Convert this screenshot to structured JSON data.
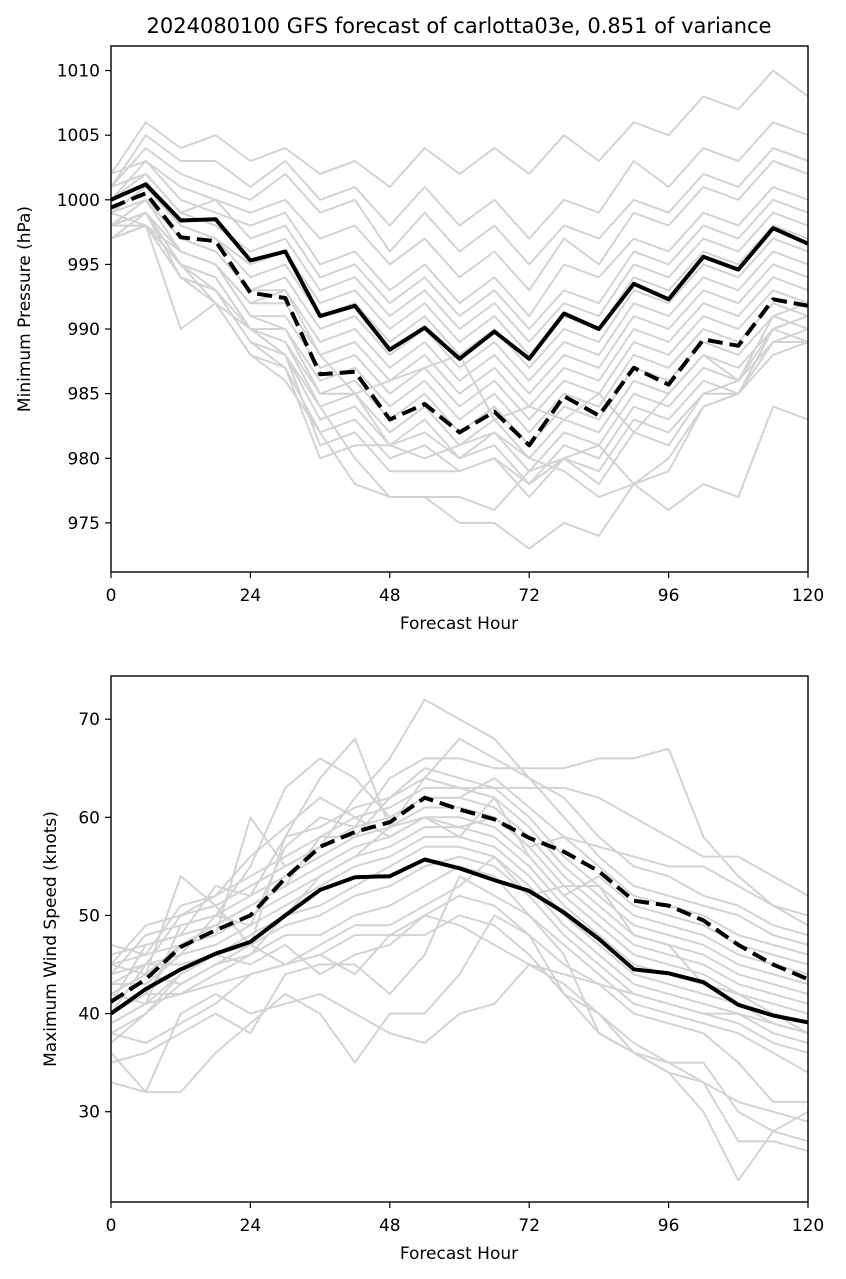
{
  "chart_data": [
    {
      "type": "line",
      "title": "2024080100 GFS forecast of carlotta03e, 0.851 of variance",
      "xlabel": "Forecast Hour",
      "ylabel": "Minimum Pressure (hPa)",
      "xlim": [
        0,
        120
      ],
      "ylim": [
        971.2,
        1011.9
      ],
      "xticks": [
        0,
        24,
        48,
        72,
        96,
        120
      ],
      "yticks": [
        975,
        980,
        985,
        990,
        995,
        1000,
        1005,
        1010
      ],
      "grid": false,
      "x": [
        0,
        6,
        12,
        18,
        24,
        30,
        36,
        42,
        48,
        54,
        60,
        66,
        72,
        78,
        84,
        90,
        96,
        102,
        108,
        114,
        120
      ],
      "series": [
        {
          "style": "solid",
          "color": "#000000",
          "values": [
            1000.0,
            1001.2,
            998.4,
            998.5,
            995.3,
            996.0,
            991.0,
            991.8,
            988.4,
            990.1,
            987.7,
            989.8,
            987.7,
            991.2,
            990.0,
            993.5,
            992.3,
            995.6,
            994.6,
            997.8,
            996.6
          ]
        },
        {
          "style": "dashed",
          "color": "#000000",
          "values": [
            999.4,
            1000.5,
            997.1,
            996.8,
            992.8,
            992.4,
            986.5,
            986.7,
            983.0,
            984.2,
            982.0,
            983.6,
            981.0,
            984.8,
            983.3,
            987.0,
            985.7,
            989.2,
            988.7,
            992.3,
            991.8
          ]
        }
      ],
      "members": [
        [
          1002,
          1006,
          1004,
          1005,
          1003,
          1004,
          1002,
          1003,
          1001,
          1004,
          1002,
          1004,
          1002,
          1005,
          1003,
          1006,
          1005,
          1008,
          1007,
          1010,
          1008
        ],
        [
          1001,
          1005,
          1003,
          1003,
          1001,
          1003,
          1000,
          1001,
          998,
          1001,
          998,
          1000,
          997,
          1000,
          999,
          1003,
          1001,
          1004,
          1003,
          1006,
          1005
        ],
        [
          1001,
          1004,
          1002,
          1001,
          1000,
          1002,
          999,
          1000,
          996,
          999,
          996,
          998,
          995,
          998,
          997,
          1000,
          999,
          1002,
          1001,
          1004,
          1003
        ],
        [
          1002,
          1003,
          1001,
          1000,
          999,
          1000,
          997,
          998,
          995,
          997,
          994,
          996,
          993,
          997,
          995,
          999,
          998,
          1001,
          1000,
          1003,
          1002
        ],
        [
          1000,
          1003,
          1000,
          999,
          998,
          999,
          995,
          996,
          993,
          995,
          992,
          994,
          991,
          995,
          994,
          997,
          996,
          999,
          998,
          1001,
          1000
        ],
        [
          1001,
          1002,
          999,
          1000,
          997,
          998,
          994,
          995,
          992,
          994,
          991,
          993,
          990,
          993,
          992,
          996,
          995,
          998,
          997,
          1000,
          999
        ],
        [
          1000,
          1002,
          999,
          998,
          996,
          997,
          993,
          994,
          991,
          993,
          990,
          992,
          989,
          992,
          991,
          995,
          994,
          997,
          996,
          999,
          998
        ],
        [
          999,
          1001,
          998,
          997,
          995,
          996,
          992,
          993,
          990,
          992,
          989,
          991,
          988,
          991,
          990,
          994,
          993,
          996,
          995,
          998,
          997
        ],
        [
          999,
          1001,
          998,
          997,
          994,
          995,
          991,
          992,
          989,
          991,
          988,
          990,
          987,
          990,
          989,
          993,
          992,
          995,
          994,
          997,
          996
        ],
        [
          998,
          1000,
          997,
          996,
          993,
          994,
          990,
          991,
          988,
          990,
          987,
          989,
          986,
          989,
          988,
          992,
          991,
          994,
          993,
          996,
          995
        ],
        [
          998,
          1000,
          997,
          996,
          993,
          993,
          989,
          990,
          987,
          989,
          986,
          988,
          985,
          988,
          987,
          991,
          990,
          993,
          992,
          995,
          994
        ],
        [
          998,
          999,
          996,
          995,
          992,
          992,
          988,
          989,
          986,
          988,
          985,
          987,
          984,
          987,
          986,
          990,
          989,
          992,
          991,
          994,
          993
        ],
        [
          997,
          999,
          996,
          995,
          991,
          991,
          987,
          988,
          985,
          987,
          984,
          986,
          983,
          986,
          985,
          989,
          988,
          991,
          990,
          993,
          992
        ],
        [
          997,
          998,
          995,
          994,
          990,
          990,
          986,
          987,
          984,
          986,
          983,
          985,
          982,
          985,
          984,
          988,
          987,
          990,
          989,
          992,
          991
        ],
        [
          998,
          998,
          995,
          993,
          990,
          989,
          985,
          986,
          983,
          985,
          982,
          984,
          981,
          984,
          983,
          987,
          986,
          989,
          988,
          991,
          990
        ],
        [
          997,
          998,
          996,
          995,
          991,
          990,
          985,
          985,
          982,
          984,
          981,
          983,
          980,
          983,
          982,
          986,
          985,
          988,
          987,
          990,
          989
        ],
        [
          998,
          999,
          995,
          994,
          990,
          989,
          984,
          985,
          981,
          983,
          980,
          982,
          979,
          982,
          981,
          985,
          984,
          987,
          986,
          989,
          989
        ],
        [
          998,
          999,
          994,
          993,
          989,
          988,
          983,
          984,
          981,
          982,
          980,
          981,
          978,
          981,
          980,
          984,
          983,
          986,
          985,
          988,
          989
        ],
        [
          997,
          998,
          994,
          992,
          988,
          987,
          982,
          983,
          980,
          981,
          979,
          980,
          977,
          980,
          979,
          983,
          982,
          985,
          985,
          989,
          990
        ],
        [
          998,
          999,
          995,
          994,
          990,
          988,
          981,
          982,
          979,
          979,
          979,
          980,
          978,
          980,
          978,
          982,
          981,
          985,
          986,
          990,
          991
        ],
        [
          997,
          998,
          994,
          993,
          989,
          987,
          980,
          981,
          981,
          980,
          981,
          982,
          980,
          979,
          977,
          978,
          979,
          984,
          985,
          989,
          990
        ],
        [
          998,
          998,
          995,
          992,
          988,
          986,
          982,
          978,
          977,
          977,
          975,
          975,
          973,
          975,
          974,
          978,
          976,
          978,
          977,
          984,
          983
        ],
        [
          999,
          998,
          990,
          992,
          990,
          988,
          984,
          980,
          977,
          977,
          977,
          976,
          979,
          980,
          981,
          978,
          980,
          984,
          985,
          990,
          991
        ],
        [
          999,
          1000,
          996,
          995,
          992,
          993,
          988,
          985,
          986,
          987,
          988,
          983,
          984,
          983,
          985,
          982,
          985,
          988,
          986,
          991,
          992
        ]
      ]
    },
    {
      "type": "line",
      "title": "",
      "xlabel": "Forecast Hour",
      "ylabel": "Maximum Wind Speed (knots)",
      "xlim": [
        0,
        120
      ],
      "ylim": [
        20.8,
        74.4
      ],
      "xticks": [
        0,
        24,
        48,
        72,
        96,
        120
      ],
      "yticks": [
        30,
        40,
        50,
        60,
        70
      ],
      "grid": false,
      "x": [
        0,
        6,
        12,
        18,
        24,
        30,
        36,
        42,
        48,
        54,
        60,
        66,
        72,
        78,
        84,
        90,
        96,
        102,
        108,
        114,
        120
      ],
      "series": [
        {
          "style": "solid",
          "color": "#000000",
          "values": [
            40.0,
            42.5,
            44.5,
            46.1,
            47.3,
            50.0,
            52.6,
            53.9,
            54.0,
            55.7,
            54.8,
            53.6,
            52.5,
            50.3,
            47.6,
            44.5,
            44.1,
            43.2,
            40.9,
            39.8,
            39.1
          ]
        },
        {
          "style": "dashed",
          "color": "#000000",
          "values": [
            41.2,
            43.5,
            46.8,
            48.5,
            50.0,
            53.8,
            57.0,
            58.5,
            59.5,
            62.0,
            60.8,
            59.8,
            57.9,
            56.5,
            54.5,
            51.5,
            51.0,
            49.5,
            47.0,
            45.0,
            43.5
          ]
        }
      ],
      "members": [
        [
          33,
          32,
          32,
          36,
          39,
          42,
          40,
          35,
          40,
          40,
          44,
          50,
          48,
          42,
          38,
          36,
          34,
          33,
          31,
          30,
          29
        ],
        [
          36,
          32,
          40,
          42,
          40,
          41,
          42,
          40,
          38,
          37,
          40,
          41,
          45,
          43,
          40,
          36,
          35,
          33,
          27,
          27,
          26
        ],
        [
          35,
          36,
          38,
          40,
          38,
          44,
          45,
          45,
          42,
          46,
          54,
          52,
          50,
          46,
          38,
          36,
          34,
          30,
          23,
          28,
          27
        ],
        [
          38,
          37,
          39,
          41,
          44,
          45,
          46,
          44,
          48,
          48,
          50,
          49,
          46,
          42,
          40,
          37,
          35,
          35,
          30,
          28,
          30
        ],
        [
          37,
          40,
          44,
          46,
          45,
          47,
          44,
          46,
          47,
          50,
          52,
          51,
          48,
          45,
          43,
          40,
          39,
          38,
          35,
          31,
          31
        ],
        [
          40,
          42,
          42,
          44,
          46,
          48,
          48,
          50,
          51,
          53,
          55,
          54,
          50,
          47,
          44,
          41,
          40,
          39,
          38,
          36,
          34
        ],
        [
          42,
          44,
          43,
          45,
          47,
          49,
          50,
          52,
          53,
          55,
          56,
          55,
          52,
          48,
          45,
          42,
          41,
          40,
          39,
          37,
          36
        ],
        [
          43,
          45,
          45,
          46,
          48,
          50,
          51,
          53,
          55,
          57,
          57,
          56,
          53,
          49,
          46,
          43,
          42,
          41,
          40,
          38,
          37
        ],
        [
          44,
          45,
          46,
          47,
          49,
          51,
          53,
          55,
          56,
          58,
          58,
          57,
          54,
          50,
          47,
          44,
          43,
          42,
          41,
          39,
          38
        ],
        [
          45,
          46,
          47,
          48,
          50,
          52,
          54,
          56,
          57,
          59,
          59,
          58,
          55,
          51,
          48,
          45,
          44,
          43,
          42,
          40,
          39
        ],
        [
          46,
          47,
          48,
          49,
          51,
          53,
          55,
          57,
          58,
          60,
          60,
          59,
          56,
          52,
          49,
          46,
          45,
          44,
          42,
          41,
          40
        ],
        [
          44,
          48,
          49,
          50,
          52,
          54,
          56,
          58,
          59,
          61,
          61,
          60,
          57,
          53,
          50,
          47,
          46,
          45,
          43,
          42,
          41
        ],
        [
          45,
          49,
          50,
          51,
          53,
          55,
          57,
          59,
          60,
          62,
          62,
          61,
          58,
          54,
          51,
          48,
          47,
          46,
          44,
          43,
          42
        ],
        [
          47,
          46,
          51,
          52,
          54,
          56,
          58,
          60,
          61,
          63,
          63,
          62,
          59,
          55,
          52,
          49,
          48,
          47,
          45,
          44,
          43
        ],
        [
          42,
          44,
          54,
          51,
          47,
          58,
          59,
          61,
          62,
          65,
          64,
          63,
          60,
          56,
          53,
          50,
          49,
          48,
          46,
          45,
          44
        ],
        [
          40,
          45,
          50,
          52,
          56,
          59,
          62,
          60,
          58,
          60,
          58,
          62,
          56,
          52,
          54,
          51,
          50,
          49,
          47,
          46,
          45
        ],
        [
          43,
          43,
          46,
          50,
          55,
          63,
          66,
          64,
          60,
          62,
          62,
          64,
          61,
          58,
          55,
          52,
          51,
          50,
          48,
          47,
          46
        ],
        [
          41,
          47,
          48,
          53,
          52,
          58,
          64,
          68,
          59,
          64,
          68,
          66,
          64,
          60,
          56,
          53,
          52,
          51,
          50,
          48,
          47
        ],
        [
          45,
          44,
          47,
          48,
          60,
          55,
          57,
          62,
          66,
          72,
          70,
          68,
          64,
          62,
          58,
          55,
          54,
          52,
          51,
          49,
          48
        ],
        [
          39,
          41,
          49,
          50,
          49,
          57,
          60,
          59,
          64,
          66,
          66,
          65,
          65,
          65,
          66,
          66,
          67,
          58,
          54,
          51,
          49
        ],
        [
          40,
          42,
          47,
          49,
          51,
          53,
          58,
          58,
          62,
          64,
          63,
          63,
          63,
          63,
          62,
          60,
          58,
          56,
          56,
          54,
          52
        ],
        [
          38,
          40,
          43,
          45,
          46,
          50,
          54,
          56,
          59,
          60,
          59,
          60,
          57,
          58,
          57,
          56,
          55,
          55,
          53,
          51,
          50
        ],
        [
          42,
          41,
          44,
          46,
          47,
          45,
          47,
          49,
          49,
          51,
          53,
          56,
          52,
          53,
          53,
          48,
          47,
          43,
          42,
          40,
          38
        ],
        [
          39,
          41,
          42,
          43,
          44,
          45,
          46,
          48,
          48,
          50,
          49,
          47,
          45,
          44,
          43,
          42,
          41,
          40,
          40,
          39,
          38
        ]
      ]
    }
  ]
}
